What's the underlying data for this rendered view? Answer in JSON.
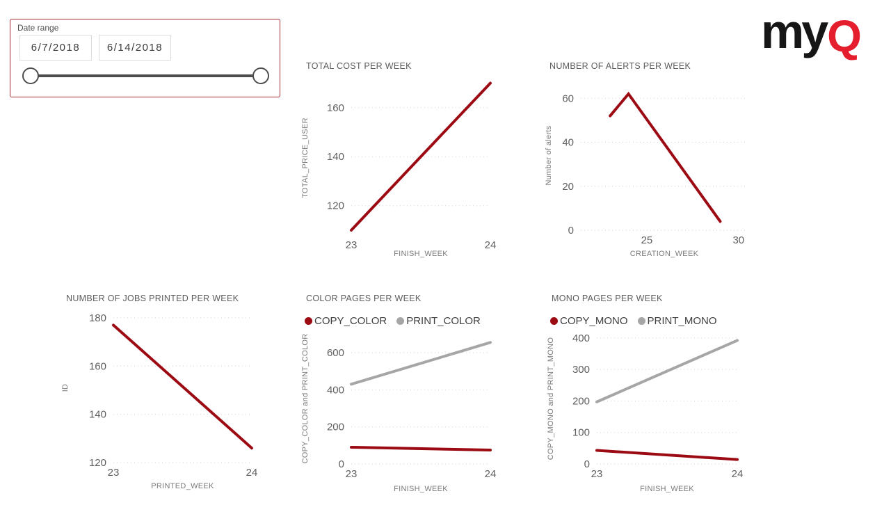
{
  "logo": {
    "text_my": "my",
    "text_q": "Q"
  },
  "slicer": {
    "label": "Date range",
    "start_date": "6/7/2018",
    "end_date": "6/14/2018"
  },
  "colors": {
    "series_red": "#9c0b13",
    "series_gray": "#a6a6a6",
    "logo_black": "#161616",
    "logo_red": "#e41e2d",
    "slicer_border": "#a42b32",
    "slider_dark": "#4d4d4d",
    "grid_gray": "#d2d2d2"
  },
  "chart_data": [
    {
      "id": "total-cost-per-week",
      "type": "line",
      "title": "TOTAL COST PER WEEK",
      "xlabel": "FINISH_WEEK",
      "ylabel": "TOTAL_PRICE_USER",
      "xlim": [
        23,
        24
      ],
      "ylim": [
        108,
        171
      ],
      "xticks": [
        23,
        24
      ],
      "yticks": [
        120,
        140,
        160
      ],
      "grid": "dotted-horizontal",
      "legend": null,
      "series": [
        {
          "name": "TOTAL_PRICE_USER",
          "color": "#9c0b13",
          "x": [
            23,
            24
          ],
          "values": [
            110,
            170
          ]
        }
      ]
    },
    {
      "id": "number-of-alerts-per-week",
      "type": "line",
      "title": "NUMBER OF ALERTS PER WEEK",
      "xlabel": "CREATION_WEEK",
      "ylabel": "Number of alerts",
      "xlim": [
        21.4,
        30.5
      ],
      "ylim": [
        0,
        68
      ],
      "xticks": [
        25,
        30
      ],
      "yticks": [
        0,
        20,
        40,
        60
      ],
      "grid": "dotted-horizontal",
      "legend": null,
      "series": [
        {
          "name": "Number of alerts",
          "color": "#9c0b13",
          "x": [
            23,
            24,
            29
          ],
          "values": [
            52,
            62,
            4
          ]
        }
      ]
    },
    {
      "id": "number-of-jobs-printed-per-week",
      "type": "line",
      "title": "NUMBER OF JOBS PRINTED PER WEEK",
      "xlabel": "PRINTED_WEEK",
      "ylabel": "ID",
      "xlim": [
        23,
        24
      ],
      "ylim": [
        120,
        182
      ],
      "xticks": [
        23,
        24
      ],
      "yticks": [
        120,
        140,
        160,
        180
      ],
      "grid": "dotted-horizontal",
      "legend": null,
      "series": [
        {
          "name": "ID",
          "color": "#9c0b13",
          "x": [
            23,
            24
          ],
          "values": [
            177,
            126
          ]
        }
      ]
    },
    {
      "id": "color-pages-per-week",
      "type": "line",
      "title": "COLOR PAGES PER WEEK",
      "xlabel": "FINISH_WEEK",
      "ylabel": "COPY_COLOR and PRINT_COLOR",
      "xlim": [
        23,
        24
      ],
      "ylim": [
        0,
        705
      ],
      "xticks": [
        23,
        24
      ],
      "yticks": [
        0,
        200,
        400,
        600
      ],
      "grid": "dotted-horizontal",
      "legend": {
        "position": "top",
        "entries": [
          {
            "label": "COPY_COLOR",
            "color": "#9c0b13"
          },
          {
            "label": "PRINT_COLOR",
            "color": "#a6a6a6"
          }
        ]
      },
      "series": [
        {
          "name": "COPY_COLOR",
          "color": "#9c0b13",
          "x": [
            23,
            24
          ],
          "values": [
            90,
            75
          ]
        },
        {
          "name": "PRINT_COLOR",
          "color": "#a6a6a6",
          "x": [
            23,
            24
          ],
          "values": [
            430,
            655
          ]
        }
      ]
    },
    {
      "id": "mono-pages-per-week",
      "type": "line",
      "title": "MONO PAGES PER WEEK",
      "xlabel": "FINISH_WEEK",
      "ylabel": "COPY_MONO and PRINT_MONO",
      "xlim": [
        23,
        24
      ],
      "ylim": [
        0,
        415
      ],
      "xticks": [
        23,
        24
      ],
      "yticks": [
        0,
        100,
        200,
        300,
        400
      ],
      "grid": "dotted-horizontal",
      "legend": {
        "position": "top",
        "entries": [
          {
            "label": "COPY_MONO",
            "color": "#9c0b13"
          },
          {
            "label": "PRINT_MONO",
            "color": "#a6a6a6"
          }
        ]
      },
      "series": [
        {
          "name": "COPY_MONO",
          "color": "#9c0b13",
          "x": [
            23,
            24
          ],
          "values": [
            43,
            14
          ]
        },
        {
          "name": "PRINT_MONO",
          "color": "#a6a6a6",
          "x": [
            23,
            24
          ],
          "values": [
            197,
            392
          ]
        }
      ]
    }
  ]
}
